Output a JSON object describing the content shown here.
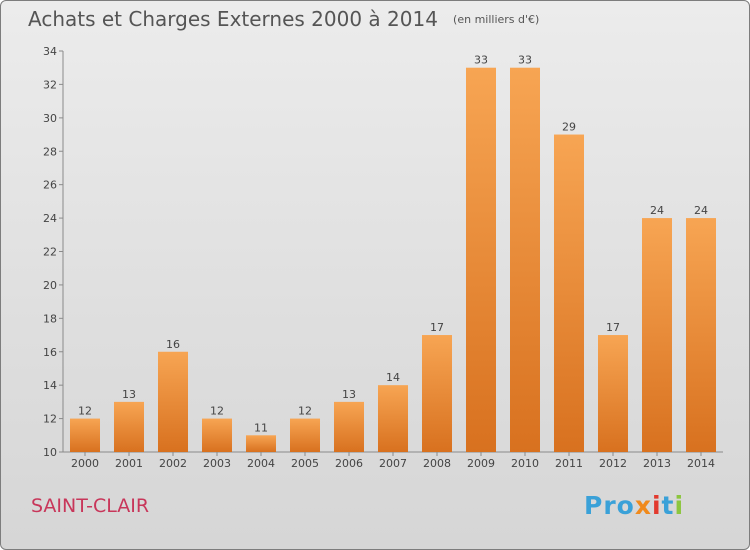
{
  "header": {
    "title": "Achats et Charges Externes 2000 à 2014",
    "subtitle": "(en milliers d'€)"
  },
  "footer": {
    "commune": "SAINT-CLAIR",
    "logo_text": "Proxiti"
  },
  "colors": {
    "bar_top": "#f7a553",
    "bar_bottom": "#d8711f",
    "commune": "#c8365a"
  },
  "chart_data": {
    "type": "bar",
    "title": "Achats et Charges Externes 2000 à 2014",
    "subtitle": "(en milliers d'€)",
    "xlabel": "",
    "ylabel": "",
    "categories": [
      "2000",
      "2001",
      "2002",
      "2003",
      "2004",
      "2005",
      "2006",
      "2007",
      "2008",
      "2009",
      "2010",
      "2011",
      "2012",
      "2013",
      "2014"
    ],
    "values": [
      12,
      13,
      16,
      12,
      11,
      12,
      13,
      14,
      17,
      33,
      33,
      29,
      17,
      24,
      24
    ],
    "ylim": [
      10,
      34
    ],
    "yticks": [
      10,
      12,
      14,
      16,
      18,
      20,
      22,
      24,
      26,
      28,
      30,
      32,
      34
    ],
    "grid": false,
    "legend": "none",
    "data_labels": true
  }
}
